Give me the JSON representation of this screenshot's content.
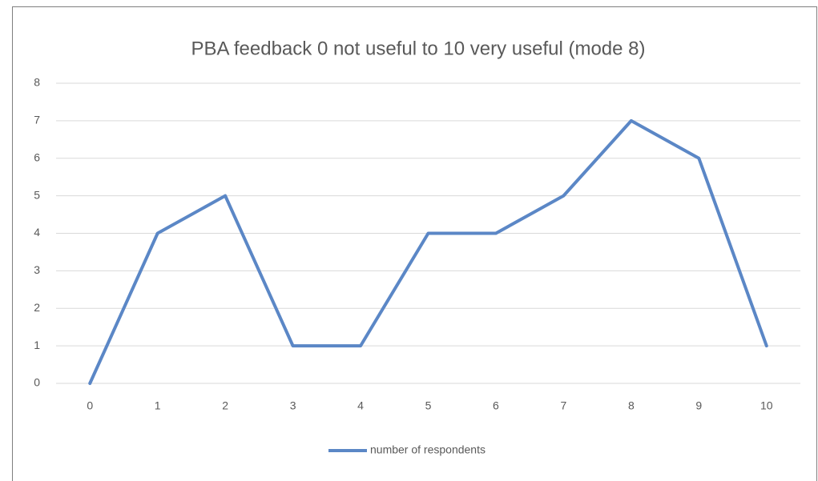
{
  "chart_data": {
    "type": "line",
    "title": "PBA feedback 0 not useful to 10 very useful (mode 8)",
    "categories": [
      "0",
      "1",
      "2",
      "3",
      "4",
      "5",
      "6",
      "7",
      "8",
      "9",
      "10"
    ],
    "series": [
      {
        "name": "number of respondents",
        "color": "#5b87c6",
        "values": [
          0,
          4,
          5,
          1,
          1,
          4,
          4,
          5,
          7,
          6,
          1
        ]
      }
    ],
    "ylim": [
      0,
      8
    ],
    "yticks": [
      0,
      1,
      2,
      3,
      4,
      5,
      6,
      7,
      8
    ],
    "grid": true,
    "legend": "bottom"
  }
}
